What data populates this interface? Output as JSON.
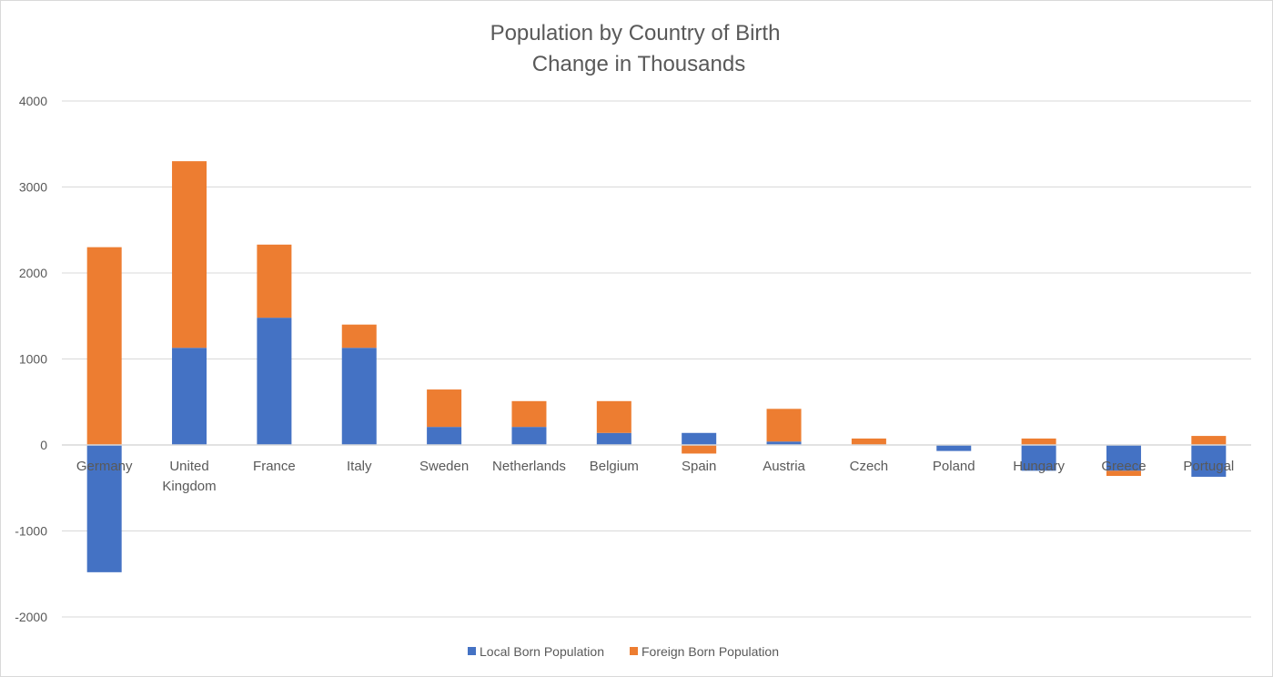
{
  "chart_data": {
    "type": "bar",
    "stacked": true,
    "title": [
      "Population by Country of Birth",
      "Change in Thousands"
    ],
    "xlabel": "",
    "ylabel": "",
    "ylim": [
      -2000,
      4000
    ],
    "yticks": [
      4000,
      3000,
      2000,
      1000,
      0,
      -1000,
      -2000
    ],
    "grid": true,
    "legend_position": "bottom",
    "categories": [
      [
        "Germany"
      ],
      [
        "United",
        "Kingdom"
      ],
      [
        "France"
      ],
      [
        "Italy"
      ],
      [
        "Sweden"
      ],
      [
        "Netherlands"
      ],
      [
        "Belgium"
      ],
      [
        "Spain"
      ],
      [
        "Austria"
      ],
      [
        "Czech"
      ],
      [
        "Poland"
      ],
      [
        "Hungary"
      ],
      [
        "Greece"
      ],
      [
        "Portugal"
      ]
    ],
    "series": [
      {
        "name": "Local Born Population",
        "color": "#4472C4",
        "values": [
          -1480,
          1130,
          1480,
          1130,
          210,
          210,
          140,
          140,
          40,
          0,
          -70,
          -300,
          -300,
          -370
        ]
      },
      {
        "name": "Foreign Born Population",
        "color": "#ED7D31",
        "values": [
          2300,
          2170,
          850,
          270,
          435,
          300,
          370,
          -100,
          380,
          75,
          0,
          75,
          -60,
          105
        ]
      }
    ]
  }
}
